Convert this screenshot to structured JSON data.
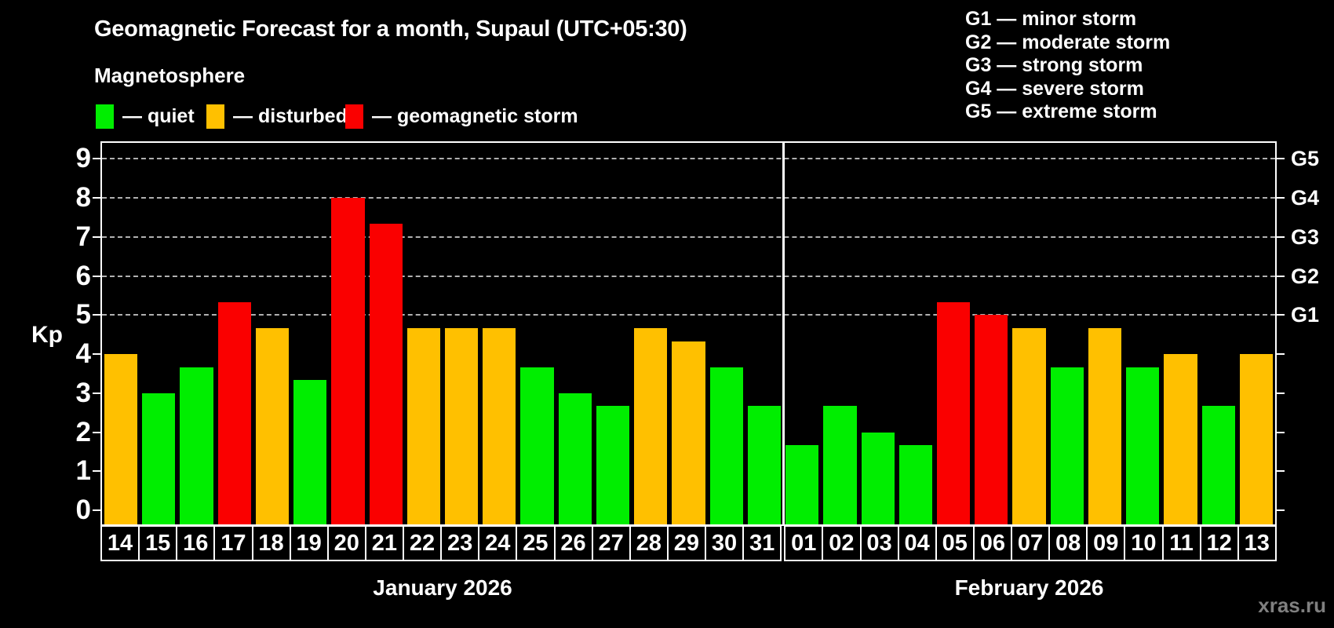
{
  "title": "Geomagnetic Forecast for a month, Supaul (UTC+05:30)",
  "subtitle": "Magnetosphere",
  "legend": {
    "items": [
      {
        "status": "quiet",
        "label": "— quiet",
        "color": "#00EE00"
      },
      {
        "status": "disturbed",
        "label": "— disturbed",
        "color": "#FFC000"
      },
      {
        "status": "storm",
        "label": "— geomagnetic storm",
        "color": "#FA0000"
      }
    ]
  },
  "g_scale": {
    "lines": [
      "G1 — minor storm",
      "G2 — moderate storm",
      "G3 — strong storm",
      "G4 — severe storm",
      "G5 — extreme storm"
    ]
  },
  "watermark": "xras.ru",
  "chart_data": {
    "type": "bar",
    "title": "Geomagnetic Forecast for a month, Supaul (UTC+05:30)",
    "subtitle": "Magnetosphere",
    "ylabel": "Kp",
    "ylim": [
      -0.36,
      9.41
    ],
    "y_ticks": [
      0,
      1,
      2,
      3,
      4,
      5,
      6,
      7,
      8,
      9
    ],
    "gridlines_at": [
      5,
      6,
      7,
      8,
      9
    ],
    "grid": "dashed",
    "right_axis_labels": [
      {
        "value": 5,
        "label": "G1"
      },
      {
        "value": 6,
        "label": "G2"
      },
      {
        "value": 7,
        "label": "G3"
      },
      {
        "value": 8,
        "label": "G4"
      },
      {
        "value": 9,
        "label": "G5"
      }
    ],
    "status_colors": {
      "quiet": "#00EE00",
      "disturbed": "#FFC000",
      "storm": "#FA0000"
    },
    "months": [
      {
        "label": "January 2026",
        "days": 18
      },
      {
        "label": "February 2026",
        "days": 13
      }
    ],
    "bars": [
      {
        "day": "14",
        "kp": 4.0,
        "status": "disturbed"
      },
      {
        "day": "15",
        "kp": 3.0,
        "status": "quiet"
      },
      {
        "day": "16",
        "kp": 3.67,
        "status": "quiet"
      },
      {
        "day": "17",
        "kp": 5.33,
        "status": "storm"
      },
      {
        "day": "18",
        "kp": 4.67,
        "status": "disturbed"
      },
      {
        "day": "19",
        "kp": 3.33,
        "status": "quiet"
      },
      {
        "day": "20",
        "kp": 8.0,
        "status": "storm"
      },
      {
        "day": "21",
        "kp": 7.33,
        "status": "storm"
      },
      {
        "day": "22",
        "kp": 4.67,
        "status": "disturbed"
      },
      {
        "day": "23",
        "kp": 4.67,
        "status": "disturbed"
      },
      {
        "day": "24",
        "kp": 4.67,
        "status": "disturbed"
      },
      {
        "day": "25",
        "kp": 3.67,
        "status": "quiet"
      },
      {
        "day": "26",
        "kp": 3.0,
        "status": "quiet"
      },
      {
        "day": "27",
        "kp": 2.67,
        "status": "quiet"
      },
      {
        "day": "28",
        "kp": 4.67,
        "status": "disturbed"
      },
      {
        "day": "29",
        "kp": 4.33,
        "status": "disturbed"
      },
      {
        "day": "30",
        "kp": 3.67,
        "status": "quiet"
      },
      {
        "day": "31",
        "kp": 2.67,
        "status": "quiet"
      },
      {
        "day": "01",
        "kp": 1.67,
        "status": "quiet"
      },
      {
        "day": "02",
        "kp": 2.67,
        "status": "quiet"
      },
      {
        "day": "03",
        "kp": 2.0,
        "status": "quiet"
      },
      {
        "day": "04",
        "kp": 1.67,
        "status": "quiet"
      },
      {
        "day": "05",
        "kp": 5.33,
        "status": "storm"
      },
      {
        "day": "06",
        "kp": 5.0,
        "status": "storm"
      },
      {
        "day": "07",
        "kp": 4.67,
        "status": "disturbed"
      },
      {
        "day": "08",
        "kp": 3.67,
        "status": "quiet"
      },
      {
        "day": "09",
        "kp": 4.67,
        "status": "disturbed"
      },
      {
        "day": "10",
        "kp": 3.67,
        "status": "quiet"
      },
      {
        "day": "11",
        "kp": 4.0,
        "status": "disturbed"
      },
      {
        "day": "12",
        "kp": 2.67,
        "status": "quiet"
      },
      {
        "day": "13",
        "kp": 4.0,
        "status": "disturbed"
      }
    ]
  }
}
